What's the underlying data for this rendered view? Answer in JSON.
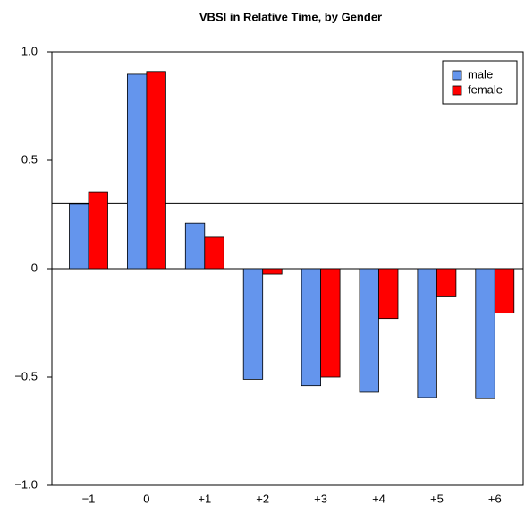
{
  "chart_data": {
    "type": "bar",
    "title": "VBSI in Relative Time, by Gender",
    "categories": [
      "−1",
      "0",
      "+1",
      "+2",
      "+3",
      "+4",
      "+5",
      "+6"
    ],
    "series": [
      {
        "name": "male",
        "color": "#6495ed",
        "values": [
          0.298,
          0.897,
          0.21,
          -0.51,
          -0.54,
          -0.57,
          -0.595,
          -0.6
        ]
      },
      {
        "name": "female",
        "color": "#ff0000",
        "values": [
          0.355,
          0.91,
          0.145,
          -0.025,
          -0.5,
          -0.23,
          -0.13,
          -0.205
        ]
      }
    ],
    "ylim": [
      -1,
      1
    ],
    "yticks": [
      {
        "value": -1,
        "label": "−1.0"
      },
      {
        "value": -0.5,
        "label": "−0.5"
      },
      0,
      0.5,
      {
        "value": 1,
        "label": "1.0"
      }
    ],
    "reference_line": 0.3,
    "legend": "top-right"
  }
}
